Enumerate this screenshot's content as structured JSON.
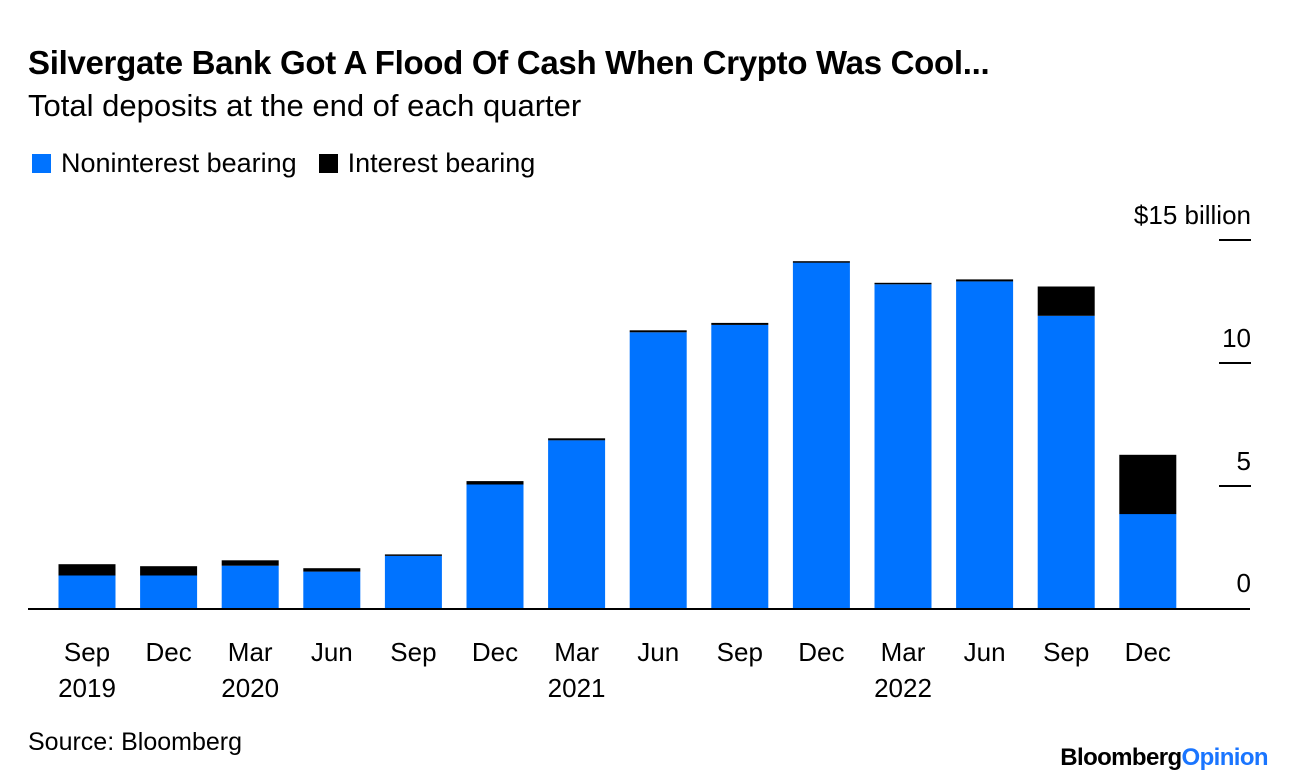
{
  "header": {
    "title": "Silvergate Bank Got A Flood Of Cash When Crypto Was Cool...",
    "subtitle": "Total deposits at the end of each quarter"
  },
  "footer": {
    "source": "Source: Bloomberg",
    "brand_main": "Bloomberg",
    "brand_opinion": "Opinion"
  },
  "colors": {
    "noninterest": "#0073ff",
    "interest": "#000000",
    "axis": "#000000",
    "brand_opinion": "#1a75ff"
  },
  "chart_data": {
    "type": "bar",
    "stacked": true,
    "title": "Silvergate Bank Got A Flood Of Cash When Crypto Was Cool...",
    "subtitle": "Total deposits at the end of each quarter",
    "legend_position": "top-left",
    "grid": false,
    "y_axis_side": "right",
    "y_unit_label": "$15 billion",
    "ylim": [
      0,
      15
    ],
    "yticks": [
      0,
      5,
      10,
      15
    ],
    "ytick_labels": [
      "0",
      "5",
      "10",
      "$15 billion"
    ],
    "categories": [
      "Sep 2019",
      "Dec 2019",
      "Mar 2020",
      "Jun 2020",
      "Sep 2020",
      "Dec 2020",
      "Mar 2021",
      "Jun 2021",
      "Sep 2021",
      "Dec 2021",
      "Mar 2022",
      "Jun 2022",
      "Sep 2022",
      "Dec 2022"
    ],
    "x_tick_labels": [
      {
        "month": "Sep",
        "year": "2019"
      },
      {
        "month": "Dec",
        "year": ""
      },
      {
        "month": "Mar",
        "year": "2020"
      },
      {
        "month": "Jun",
        "year": ""
      },
      {
        "month": "Sep",
        "year": ""
      },
      {
        "month": "Dec",
        "year": ""
      },
      {
        "month": "Mar",
        "year": "2021"
      },
      {
        "month": "Jun",
        "year": ""
      },
      {
        "month": "Sep",
        "year": ""
      },
      {
        "month": "Dec",
        "year": ""
      },
      {
        "month": "Mar",
        "year": "2022"
      },
      {
        "month": "Jun",
        "year": ""
      },
      {
        "month": "Sep",
        "year": ""
      },
      {
        "month": "Dec",
        "year": ""
      }
    ],
    "series": [
      {
        "name": "Noninterest bearing",
        "color": "#0073ff",
        "values": [
          1.36,
          1.36,
          1.76,
          1.52,
          2.16,
          5.06,
          6.86,
          11.25,
          11.55,
          14.08,
          13.2,
          13.32,
          11.92,
          3.86
        ]
      },
      {
        "name": "Interest bearing",
        "color": "#000000",
        "values": [
          0.46,
          0.38,
          0.22,
          0.14,
          0.06,
          0.14,
          0.08,
          0.08,
          0.08,
          0.06,
          0.06,
          0.08,
          1.19,
          2.41
        ]
      }
    ]
  }
}
